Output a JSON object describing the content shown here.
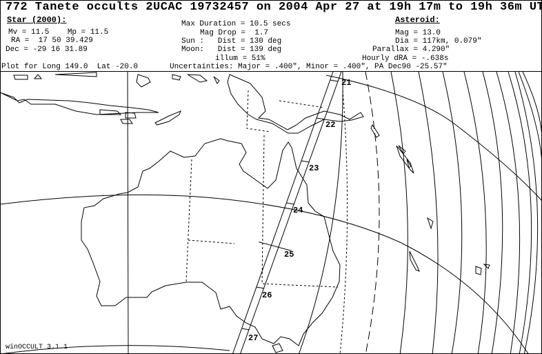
{
  "title": "772 Tanete occults 2UCAC 19732457 on 2004 Apr 27 at 19h 17m to 19h 36m UT",
  "star": {
    "heading": "Star (2000):",
    "mags": "Mv = 11.5    Mp = 11.5",
    "ra": "RA =  17 50 39.429",
    "dec": "Dec = -29 16 31.89"
  },
  "event": {
    "max_duration": "Max Duration = 10.5 secs",
    "mag_drop": "Mag Drop =  1.7",
    "sun": "Sun :   Dist = 130 deg",
    "moon": "Moon:   Dist = 139 deg",
    "illum": "illum = 51%"
  },
  "asteroid": {
    "heading": "Asteroid:",
    "mag": "Mag = 13.0",
    "dia": "Dia = 117km, 0.079\"",
    "parallax": "Parallax = 4.290\"",
    "hourly_dra": "Hourly dRA = -.638s"
  },
  "plot_for": "Plot for Long 149.0  Lat -20.0",
  "uncertainties": "Uncertainties: Major = .400\", Minor = .400\", PA Dec90 -25.57\"",
  "map": {
    "time_labels": [
      "21",
      "22",
      "23",
      "24",
      "25",
      "26",
      "27"
    ],
    "line_color": "#000000",
    "background": "#ffffff"
  },
  "software": "winOCCULT 3.1.1"
}
